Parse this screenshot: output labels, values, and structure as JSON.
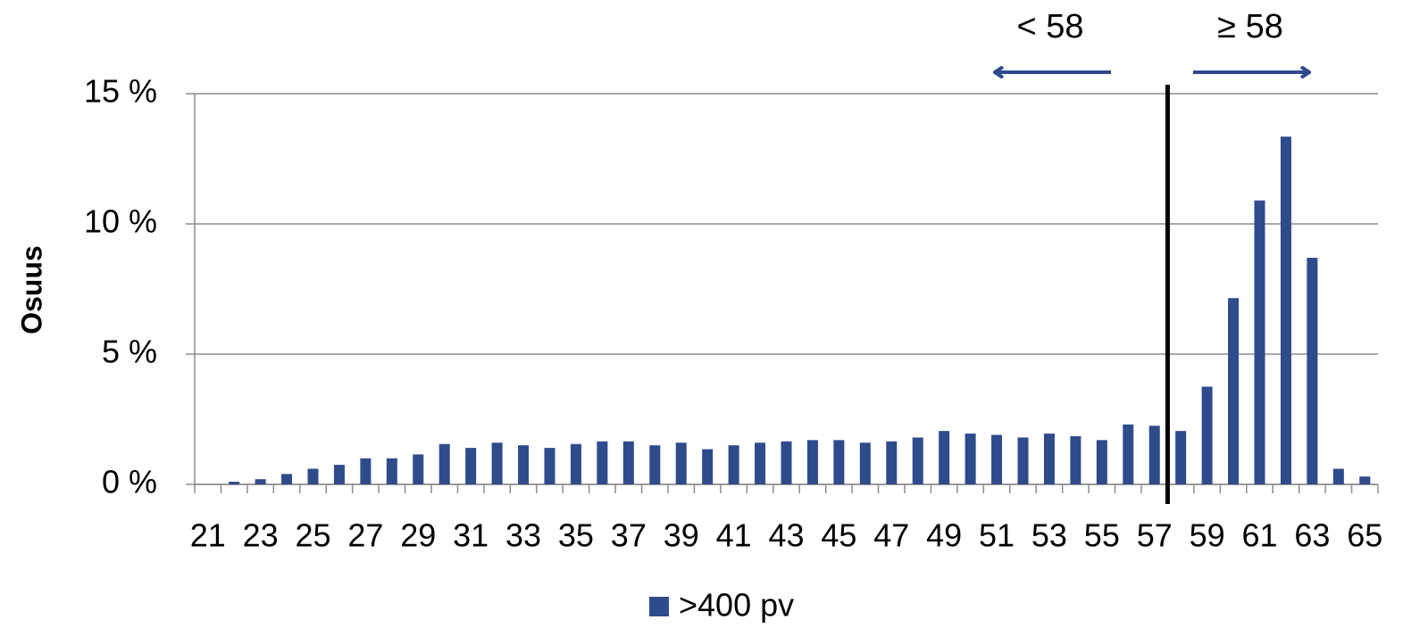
{
  "chart_data": {
    "type": "bar",
    "y_label": "Osuus",
    "categories": [
      "21",
      null,
      "23",
      null,
      "25",
      null,
      "27",
      null,
      "29",
      null,
      "31",
      null,
      "33",
      null,
      "35",
      null,
      "37",
      null,
      "39",
      null,
      "41",
      null,
      "43",
      null,
      "45",
      null,
      "47",
      null,
      "49",
      null,
      "51",
      null,
      "53",
      null,
      "55",
      null,
      "57",
      null,
      "59",
      null,
      "61",
      null,
      "63",
      null,
      "65"
    ],
    "series": [
      {
        "name": ">400 pv",
        "color": "#2e4b8b",
        "values": [
          0,
          0.1,
          0.2,
          0.4,
          0.6,
          0.75,
          1.0,
          1.0,
          1.15,
          1.55,
          1.4,
          1.6,
          1.5,
          1.4,
          1.55,
          1.65,
          1.65,
          1.5,
          1.6,
          1.35,
          1.5,
          1.6,
          1.65,
          1.7,
          1.7,
          1.6,
          1.65,
          1.8,
          2.05,
          1.95,
          1.9,
          1.8,
          1.95,
          1.85,
          1.7,
          2.3,
          2.25,
          2.05,
          3.75,
          7.15,
          10.9,
          13.35,
          8.7,
          0.6,
          0.3
        ]
      }
    ],
    "ylim": [
      0,
      15
    ],
    "yticks": [
      {
        "value": 0,
        "label": "0 %"
      },
      {
        "value": 5,
        "label": "5 %"
      },
      {
        "value": 10,
        "label": "10 %"
      },
      {
        "value": 15,
        "label": "15 %"
      }
    ],
    "grid": true,
    "annotations": [
      "< 58",
      "≥ 58"
    ]
  }
}
